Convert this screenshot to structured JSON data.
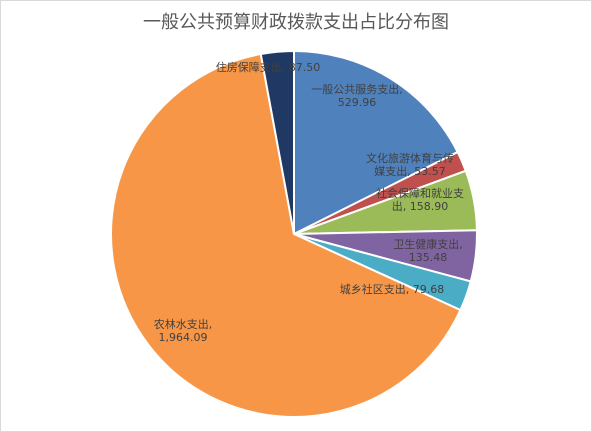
{
  "chart_data": {
    "type": "pie",
    "title": "一般公共预算财政拨款支出占比分布图",
    "slices": [
      {
        "name": "一般公共服务支出",
        "value": 529.96,
        "value_label": "529.96",
        "color": "#4F81BD"
      },
      {
        "name": "文化旅游体育与传媒支出",
        "value": 53.57,
        "value_label": "53.57",
        "color": "#C0504D"
      },
      {
        "name": "社会保障和就业支出",
        "value": 158.9,
        "value_label": "158.90",
        "color": "#9BBB59"
      },
      {
        "name": "卫生健康支出",
        "value": 135.48,
        "value_label": "135.48",
        "color": "#8064A2"
      },
      {
        "name": "城乡社区支出",
        "value": 79.68,
        "value_label": "79.68",
        "color": "#4BACC6"
      },
      {
        "name": "农林水支出",
        "value": 1964.09,
        "value_label": "1,964.09",
        "color": "#F79646"
      },
      {
        "name": "住房保障支出",
        "value": 87.5,
        "value_label": "87.50",
        "color": "#1F3864"
      }
    ],
    "labels": [
      {
        "lines": [
          "一般公共服务支出,",
          "529.96"
        ]
      },
      {
        "lines": [
          "文化旅游体育与传",
          "媒支出, 53.57"
        ]
      },
      {
        "lines": [
          "社会保障和就业支",
          "出, 158.90"
        ]
      },
      {
        "lines": [
          "卫生健康支出,",
          "135.48"
        ]
      },
      {
        "lines": [
          "城乡社区支出, 79.68"
        ]
      },
      {
        "lines": [
          "农林水支出,",
          "1,964.09"
        ]
      },
      {
        "lines": [
          "住房保障支出, 87.50"
        ]
      }
    ]
  }
}
